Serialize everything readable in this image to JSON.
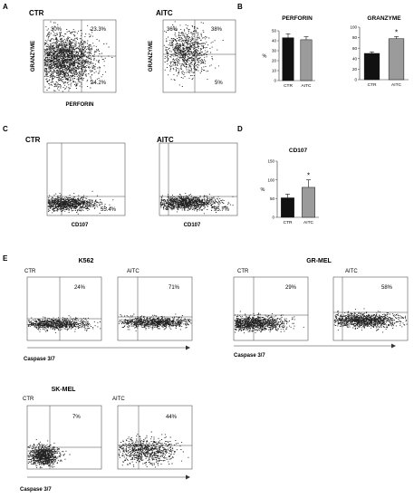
{
  "panels": {
    "A": {
      "letter": "A",
      "plots": [
        {
          "condition": "CTR",
          "ylabel": "GRANZYME",
          "xlabel": "PERFORIN",
          "quadrants": {
            "ul": "30%",
            "ur": "23.3%",
            "lr": "24.2%"
          }
        },
        {
          "condition": "AITC",
          "ylabel": "GRANZYME",
          "xlabel": "PERFORIN",
          "quadrants": {
            "ul": "36%",
            "ur": "38%",
            "lr": "5%"
          }
        }
      ]
    },
    "B": {
      "letter": "B"
    },
    "C": {
      "letter": "C",
      "plots": [
        {
          "condition": "CTR",
          "xlabel": "CD107",
          "pct": "55.4%"
        },
        {
          "condition": "AITC",
          "xlabel": "CD107",
          "pct": "95.7%"
        }
      ]
    },
    "D": {
      "letter": "D"
    },
    "E": {
      "letter": "E",
      "groups": [
        {
          "name": "K562",
          "axis_label": "Caspase 3/7",
          "plots": [
            {
              "condition": "CTR",
              "pct": "24%"
            },
            {
              "condition": "AITC",
              "pct": "71%"
            }
          ]
        },
        {
          "name": "GR-MEL",
          "axis_label": "Caspase 3/7",
          "plots": [
            {
              "condition": "CTR",
              "pct": "29%"
            },
            {
              "condition": "AITC",
              "pct": "58%"
            }
          ]
        },
        {
          "name": "SK-MEL",
          "axis_label": "Caspase 3/7",
          "plots": [
            {
              "condition": "CTR",
              "pct": "7%"
            },
            {
              "condition": "AITC",
              "pct": "44%"
            }
          ]
        }
      ]
    }
  },
  "colors": {
    "ctr_bar": "#111111",
    "aitc_bar": "#9b9b9b",
    "axis": "#333333",
    "dots": "#222222"
  },
  "chart_data": [
    {
      "type": "bar",
      "title": "PERFORIN",
      "ylabel": "%",
      "categories": [
        "CTR",
        "AITC"
      ],
      "values": [
        43,
        41
      ],
      "errors": [
        4,
        3
      ],
      "ylim": [
        0,
        50
      ],
      "yticks": [
        "0",
        "10",
        "20",
        "30",
        "40",
        "50"
      ],
      "significance": [
        "",
        ""
      ],
      "colors": [
        "#111111",
        "#9b9b9b"
      ]
    },
    {
      "type": "bar",
      "title": "GRANZYME",
      "ylabel": "",
      "categories": [
        "CTR",
        "AITC"
      ],
      "values": [
        50,
        78
      ],
      "errors": [
        3,
        4
      ],
      "ylim": [
        0,
        100
      ],
      "yticks": [
        "0",
        "20",
        "40",
        "60",
        "80",
        "100"
      ],
      "significance": [
        "",
        "*"
      ],
      "colors": [
        "#111111",
        "#9b9b9b"
      ]
    },
    {
      "type": "bar",
      "title": "CD107",
      "ylabel": "%",
      "categories": [
        "CTR",
        "AITC"
      ],
      "values": [
        52,
        80
      ],
      "errors": [
        10,
        20
      ],
      "ylim": [
        0,
        150
      ],
      "yticks": [
        "0",
        "50",
        "100",
        "150"
      ],
      "significance": [
        "",
        "*"
      ],
      "colors": [
        "#111111",
        "#9b9b9b"
      ]
    }
  ]
}
